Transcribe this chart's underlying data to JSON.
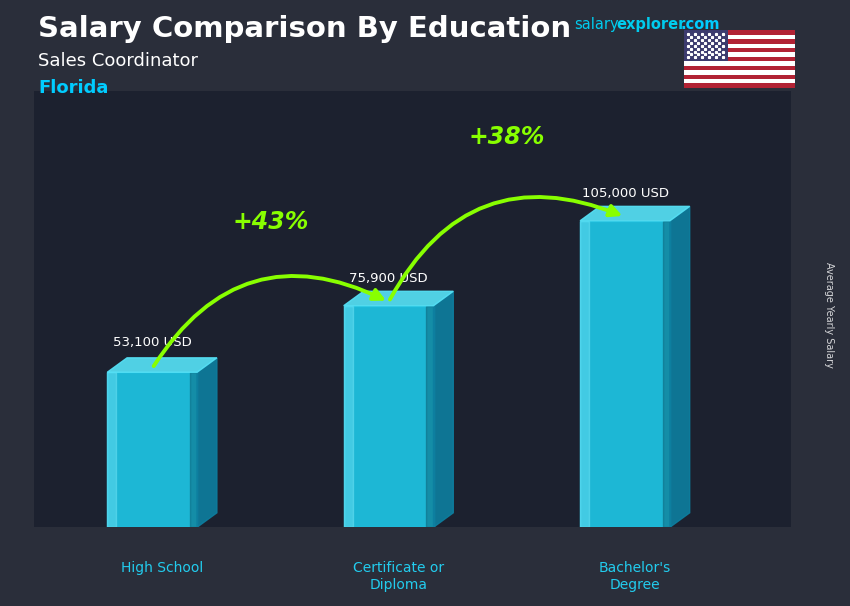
{
  "title_main": "Salary Comparison By Education",
  "subtitle1": "Sales Coordinator",
  "subtitle2": "Florida",
  "side_label": "Average Yearly Salary",
  "categories": [
    "High School",
    "Certificate or\nDiploma",
    "Bachelor's\nDegree"
  ],
  "values": [
    53100,
    75900,
    105000
  ],
  "value_labels": [
    "53,100 USD",
    "75,900 USD",
    "105,000 USD"
  ],
  "pct_labels": [
    "+43%",
    "+38%"
  ],
  "bar_face_color": "#1ec8e8",
  "bar_top_color": "#55e0f5",
  "bar_side_color": "#0d7fa0",
  "bar_highlight_color": "#88f0ff",
  "bg_overlay_color": "#1a2035",
  "title_color": "#ffffff",
  "subtitle1_color": "#ffffff",
  "subtitle2_color": "#00ccff",
  "value_label_color": "#ffffff",
  "pct_color": "#88ff00",
  "arrow_color": "#88ff00",
  "xlabel_color": "#22ccee",
  "salary_color": "#00ccee",
  "explorer_color": "#00ccee",
  "com_color": "#00ccff",
  "bar_width": 0.38,
  "ylim": [
    0,
    130000
  ],
  "figsize": [
    8.5,
    6.06
  ],
  "dpi": 100
}
